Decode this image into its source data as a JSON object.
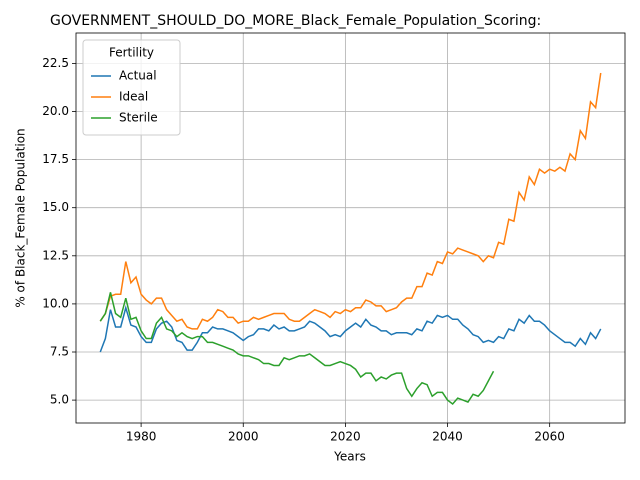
{
  "chart_data": {
    "type": "line",
    "title": "GOVERNMENT_SHOULD_DO_MORE_Black_Female_Population_Scoring:",
    "xlabel": "Years",
    "ylabel": "% of Black_Female Population",
    "legend_title": "Fertility",
    "legend": "upper left",
    "grid": true,
    "xlim": [
      1967.25,
      2074.75
    ],
    "ylim": [
      3.81,
      24.08
    ],
    "xticks": [
      1980,
      2000,
      2020,
      2040,
      2060
    ],
    "yticks": [
      {
        "value": 5.0,
        "label": "5.0"
      },
      7.5,
      {
        "value": 10.0,
        "label": "10.0"
      },
      12.5,
      {
        "value": 15.0,
        "label": "15.0"
      },
      17.5,
      {
        "value": 20.0,
        "label": "20.0"
      },
      22.5
    ],
    "x": [
      1972,
      1973,
      1974,
      1975,
      1976,
      1977,
      1978,
      1979,
      1980,
      1981,
      1982,
      1983,
      1984,
      1985,
      1986,
      1987,
      1988,
      1989,
      1990,
      1991,
      1992,
      1993,
      1994,
      1995,
      1996,
      1997,
      1998,
      1999,
      2000,
      2001,
      2002,
      2003,
      2004,
      2005,
      2006,
      2007,
      2008,
      2009,
      2010,
      2011,
      2012,
      2013,
      2014,
      2015,
      2016,
      2017,
      2018,
      2019,
      2020,
      2021,
      2022,
      2023,
      2024,
      2025,
      2026,
      2027,
      2028,
      2029,
      2030,
      2031,
      2032,
      2033,
      2034,
      2035,
      2036,
      2037,
      2038,
      2039,
      2040,
      2041,
      2042,
      2043,
      2044,
      2045,
      2046,
      2047,
      2048,
      2049,
      2050,
      2051,
      2052,
      2053,
      2054,
      2055,
      2056,
      2057,
      2058,
      2059,
      2060,
      2061,
      2062,
      2063,
      2064,
      2065,
      2066,
      2067,
      2068,
      2069,
      2070
    ],
    "series": [
      {
        "name": "Actual",
        "color": "#1f77b4",
        "values": [
          7.5,
          8.2,
          9.7,
          8.8,
          8.8,
          9.8,
          8.9,
          8.8,
          8.3,
          8.0,
          8.0,
          8.7,
          9.0,
          9.1,
          8.8,
          8.1,
          8.0,
          7.6,
          7.6,
          8.0,
          8.5,
          8.5,
          8.8,
          8.7,
          8.7,
          8.6,
          8.5,
          8.3,
          8.1,
          8.3,
          8.4,
          8.7,
          8.7,
          8.6,
          8.9,
          8.7,
          8.8,
          8.6,
          8.6,
          8.7,
          8.8,
          9.1,
          9.0,
          8.8,
          8.6,
          8.3,
          8.4,
          8.3,
          8.6,
          8.8,
          9.0,
          8.8,
          9.2,
          8.9,
          8.8,
          8.6,
          8.6,
          8.4,
          8.5,
          8.5,
          8.5,
          8.4,
          8.7,
          8.6,
          9.1,
          9.0,
          9.4,
          9.3,
          9.4,
          9.2,
          9.2,
          8.9,
          8.7,
          8.4,
          8.3,
          8.0,
          8.1,
          8.0,
          8.3,
          8.2,
          8.7,
          8.6,
          9.2,
          9.0,
          9.4,
          9.1,
          9.1,
          8.9,
          8.6,
          8.4,
          8.2,
          8.0,
          8.0,
          7.8,
          8.2,
          7.9,
          8.5,
          8.2,
          8.7
        ]
      },
      {
        "name": "Ideal",
        "color": "#ff7f0e",
        "values": [
          9.1,
          9.5,
          10.4,
          10.5,
          10.5,
          12.2,
          11.1,
          11.4,
          10.5,
          10.2,
          10.0,
          10.3,
          10.3,
          9.7,
          9.4,
          9.1,
          9.2,
          8.8,
          8.7,
          8.7,
          9.2,
          9.1,
          9.3,
          9.7,
          9.6,
          9.3,
          9.3,
          9.0,
          9.1,
          9.1,
          9.3,
          9.2,
          9.3,
          9.4,
          9.5,
          9.5,
          9.5,
          9.2,
          9.1,
          9.1,
          9.3,
          9.5,
          9.7,
          9.6,
          9.5,
          9.3,
          9.6,
          9.5,
          9.7,
          9.6,
          9.8,
          9.8,
          10.2,
          10.1,
          9.9,
          9.9,
          9.6,
          9.7,
          9.8,
          10.1,
          10.3,
          10.3,
          10.9,
          10.9,
          11.6,
          11.5,
          12.2,
          12.1,
          12.7,
          12.6,
          12.9,
          12.8,
          12.7,
          12.6,
          12.5,
          12.2,
          12.5,
          12.4,
          13.2,
          13.1,
          14.4,
          14.3,
          15.8,
          15.4,
          16.6,
          16.2,
          17.0,
          16.8,
          17.0,
          16.9,
          17.1,
          16.9,
          17.8,
          17.5,
          19.0,
          18.6,
          20.5,
          20.2,
          22.0
        ]
      },
      {
        "name": "Sterile",
        "color": "#2ca02c",
        "values": [
          9.1,
          9.5,
          10.6,
          9.5,
          9.3,
          10.3,
          9.2,
          9.3,
          8.6,
          8.2,
          8.2,
          9.0,
          9.3,
          8.7,
          8.6,
          8.3,
          8.5,
          8.3,
          8.2,
          8.3,
          8.3,
          8.0,
          8.0,
          7.9,
          7.8,
          7.7,
          7.6,
          7.4,
          7.3,
          7.3,
          7.2,
          7.1,
          6.9,
          6.9,
          6.8,
          6.8,
          7.2,
          7.1,
          7.2,
          7.3,
          7.3,
          7.4,
          7.2,
          7.0,
          6.8,
          6.8,
          6.9,
          7.0,
          6.9,
          6.8,
          6.6,
          6.2,
          6.4,
          6.4,
          6.0,
          6.2,
          6.1,
          6.3,
          6.4,
          6.4,
          5.6,
          5.2,
          5.6,
          5.9,
          5.8,
          5.2,
          5.4,
          5.4,
          5.0,
          4.8,
          5.1,
          5.0,
          4.9,
          5.3,
          5.2,
          5.5,
          6.0,
          6.5,
          null,
          null,
          null,
          null,
          null,
          null,
          null,
          null,
          null,
          null,
          null,
          null,
          null,
          null,
          null,
          null,
          null,
          null,
          null,
          null,
          null
        ]
      }
    ]
  }
}
